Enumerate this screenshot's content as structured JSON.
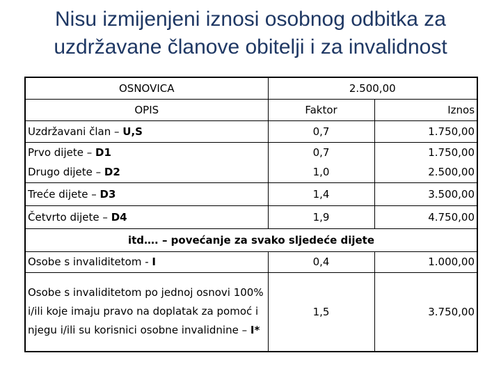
{
  "title": {
    "line1": "Nisu izmijenjeni iznosi osobnog odbitka za",
    "line2": "uzdržavane članove obitelji i za invalidnost"
  },
  "table": {
    "osnovica_label": "OSNOVICA",
    "osnovica_value": "2.500,00",
    "headers": {
      "opis": "OPIS",
      "faktor": "Faktor",
      "iznos": "Iznos"
    },
    "rows": [
      {
        "prefix": "Uzdržavani član – ",
        "code": "U,S",
        "faktor": "0,7",
        "iznos": "1.750,00"
      },
      {
        "prefix": "Prvo dijete – ",
        "code": "D1",
        "faktor": "0,7",
        "iznos": "1.750,00"
      },
      {
        "prefix": "Drugo dijete – ",
        "code": "D2",
        "faktor": "1,0",
        "iznos": "2.500,00"
      },
      {
        "prefix": "Treće dijete – ",
        "code": "D3",
        "faktor": "1,4",
        "iznos": "3.500,00"
      },
      {
        "prefix": "Četvrto dijete – ",
        "code": "D4",
        "faktor": "1,9",
        "iznos": "4.750,00"
      }
    ],
    "note": "itd…. – povećanje za svako sljedeće dijete",
    "invalid_rows": [
      {
        "prefix": "Osobe s invaliditetom - ",
        "code": "I",
        "faktor": "0,4",
        "iznos": "1.000,00"
      },
      {
        "prefix": "Osobe s invaliditetom po jednoj osnovi 100% i/ili koje imaju pravo na doplatak za pomoć i njegu i/ili su korisnici osobne invalidnine – ",
        "code": "I*",
        "faktor": "1,5",
        "iznos": "3.750,00"
      }
    ]
  }
}
